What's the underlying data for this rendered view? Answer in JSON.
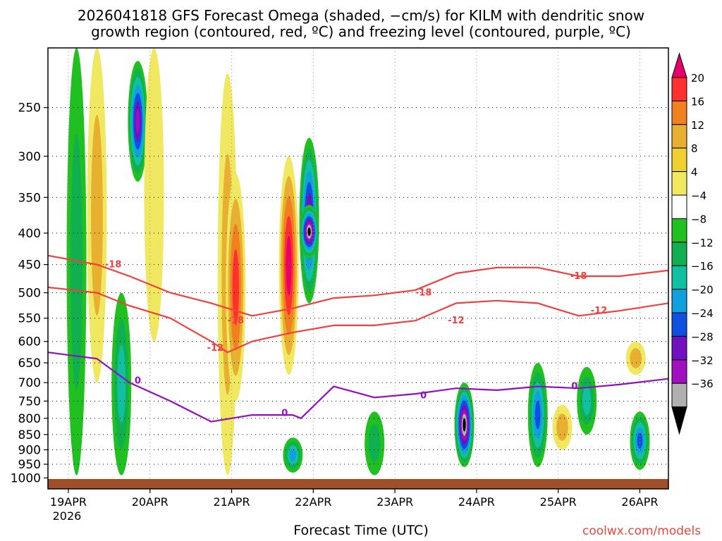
{
  "title_line1": "2026041818 GFS Forecast Omega (shaded, −cm/s) for KILM with dendritic snow",
  "title_line2": "growth region (contoured, red, ºC) and freezing level (contoured, purple, ºC)",
  "xlabel": "Forecast Time (UTC)",
  "credit": "coolwx.com/models",
  "chart_data": {
    "type": "heatmap",
    "title": "2026041818 GFS Forecast Omega (shaded, −cm/s) for KILM with dendritic snow growth region (contoured, red, ºC) and freezing level (contoured, purple, ºC)",
    "xlabel": "Forecast Time (UTC)",
    "ylabel": "",
    "x_range_days": [
      0,
      7.6
    ],
    "x_ticks": [
      {
        "label": "19APR",
        "sub": "2026",
        "day": 0.25
      },
      {
        "label": "20APR",
        "day": 1.25
      },
      {
        "label": "21APR",
        "day": 2.25
      },
      {
        "label": "22APR",
        "day": 3.25
      },
      {
        "label": "23APR",
        "day": 4.25
      },
      {
        "label": "24APR",
        "day": 5.25
      },
      {
        "label": "25APR",
        "day": 6.25
      },
      {
        "label": "26APR",
        "day": 7.25
      }
    ],
    "y_range_hpa": [
      1000,
      200
    ],
    "y_ticks": [
      250,
      300,
      350,
      400,
      450,
      500,
      550,
      600,
      650,
      700,
      750,
      800,
      850,
      900,
      950,
      1000
    ],
    "colorbar": {
      "labels": [
        "20",
        "16",
        "12",
        "8",
        "4",
        "−4",
        "−8",
        "−12",
        "−16",
        "−20",
        "−24",
        "−28",
        "−32",
        "−36"
      ],
      "colors": [
        "#e8006a",
        "#ff3030",
        "#f08020",
        "#e8b030",
        "#f0d030",
        "#f0e860",
        "#ffffff",
        "#20c020",
        "#10b050",
        "#10c0a0",
        "#10a0e0",
        "#1050e0",
        "#7010c0",
        "#a010c0",
        "#b0b0b0",
        "#000000"
      ]
    },
    "omega_features": [
      {
        "day": 0.35,
        "p_top": 200,
        "p_bot": 990,
        "value": -10
      },
      {
        "day": 0.6,
        "p_top": 200,
        "p_bot": 700,
        "value": 8
      },
      {
        "day": 0.9,
        "p_top": 500,
        "p_bot": 990,
        "value": -12
      },
      {
        "day": 1.1,
        "p_top": 210,
        "p_bot": 330,
        "value": -30
      },
      {
        "day": 1.3,
        "p_top": 200,
        "p_bot": 600,
        "value": 6
      },
      {
        "day": 2.2,
        "p_top": 220,
        "p_bot": 990,
        "value": 10
      },
      {
        "day": 2.3,
        "p_top": 320,
        "p_bot": 750,
        "value": 16
      },
      {
        "day": 2.95,
        "p_top": 300,
        "p_bot": 680,
        "value": 20
      },
      {
        "day": 3.2,
        "p_top": 280,
        "p_bot": 520,
        "value": -28
      },
      {
        "day": 3.2,
        "p_top": 360,
        "p_bot": 440,
        "value": -36
      },
      {
        "day": 3.0,
        "p_top": 860,
        "p_bot": 980,
        "value": -16
      },
      {
        "day": 4.0,
        "p_top": 780,
        "p_bot": 990,
        "value": -10
      },
      {
        "day": 5.1,
        "p_top": 700,
        "p_bot": 960,
        "value": -36
      },
      {
        "day": 6.0,
        "p_top": 650,
        "p_bot": 960,
        "value": -20
      },
      {
        "day": 6.3,
        "p_top": 760,
        "p_bot": 900,
        "value": 8
      },
      {
        "day": 6.6,
        "p_top": 660,
        "p_bot": 850,
        "value": -12
      },
      {
        "day": 7.25,
        "p_top": 780,
        "p_bot": 970,
        "value": -20
      },
      {
        "day": 7.2,
        "p_top": 600,
        "p_bot": 680,
        "value": 8
      }
    ],
    "contours": [
      {
        "name": "dgz-minus18",
        "color": "#f04040",
        "label": "-18",
        "x": [
          0,
          0.6,
          1.0,
          1.5,
          2.0,
          2.5,
          3.0,
          3.5,
          4.0,
          4.5,
          5.0,
          5.5,
          6.0,
          6.5,
          7.0,
          7.6
        ],
        "y": [
          435,
          450,
          470,
          500,
          520,
          545,
          530,
          510,
          505,
          495,
          465,
          455,
          455,
          470,
          470,
          460
        ]
      },
      {
        "name": "dgz-minus12",
        "color": "#f04040",
        "label": "-12",
        "x": [
          0,
          0.6,
          1.0,
          1.5,
          2.0,
          2.2,
          2.5,
          3.0,
          3.5,
          4.0,
          4.5,
          5.0,
          5.5,
          6.0,
          6.5,
          7.0,
          7.6
        ],
        "y": [
          490,
          500,
          525,
          550,
          600,
          625,
          600,
          580,
          565,
          565,
          555,
          520,
          515,
          520,
          545,
          535,
          520
        ]
      },
      {
        "name": "freezing-level-0",
        "color": "#9010c0",
        "label": "0",
        "x": [
          0,
          0.6,
          1.0,
          1.5,
          2.0,
          2.5,
          3.0,
          3.1,
          3.5,
          4.0,
          4.5,
          5.0,
          5.5,
          6.0,
          6.5,
          7.0,
          7.6
        ],
        "y": [
          625,
          640,
          700,
          750,
          810,
          790,
          790,
          800,
          710,
          740,
          730,
          715,
          720,
          710,
          715,
          705,
          690
        ]
      }
    ],
    "contour_labels": [
      {
        "text": "-18",
        "day": 0.8,
        "p": 450,
        "color": "#f04040"
      },
      {
        "text": "-18",
        "day": 2.3,
        "p": 555,
        "color": "#f04040"
      },
      {
        "text": "-18",
        "day": 4.6,
        "p": 500,
        "color": "#f04040"
      },
      {
        "text": "-18",
        "day": 6.5,
        "p": 470,
        "color": "#f04040"
      },
      {
        "text": "-12",
        "day": 2.05,
        "p": 615,
        "color": "#f04040"
      },
      {
        "text": "-12",
        "day": 5.0,
        "p": 555,
        "color": "#f04040"
      },
      {
        "text": "-12",
        "day": 6.75,
        "p": 535,
        "color": "#f04040"
      },
      {
        "text": "0",
        "day": 1.1,
        "p": 695,
        "color": "#9010c0"
      },
      {
        "text": "0",
        "day": 2.9,
        "p": 785,
        "color": "#9010c0"
      },
      {
        "text": "0",
        "day": 4.6,
        "p": 735,
        "color": "#9010c0"
      },
      {
        "text": "0",
        "day": 6.45,
        "p": 710,
        "color": "#9010c0"
      }
    ]
  }
}
